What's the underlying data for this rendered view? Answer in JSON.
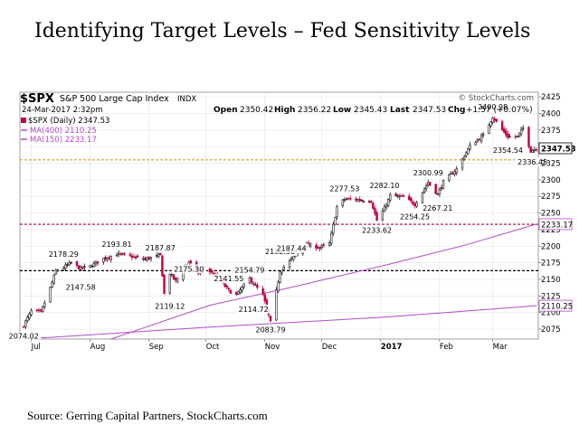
{
  "slide": {
    "title": "Identifying Target Levels – Fed Sensitivity Levels",
    "source": "Source: Gerring Capital Partners, StockCharts.com"
  },
  "chart_data": {
    "type": "candlestick",
    "symbol": "$SPX",
    "name": "S&P 500 Large Cap Index",
    "index_tag": "INDX",
    "brand": "© StockCharts.com",
    "date": "24-Mar-2017 2:32pm",
    "stats": {
      "open_label": "Open",
      "open": "2350.42",
      "high_label": "High",
      "high": "2356.22",
      "low_label": "Low",
      "low": "2345.43",
      "last_label": "Last",
      "last": "2347.53",
      "chg_label": "Chg",
      "chg": "+1.57 (+0.07%)"
    },
    "legend": [
      {
        "label": "$SPX (Daily) 2347.53",
        "color": "#c0003c"
      },
      {
        "label": "MA(400) 2110.25",
        "color": "#b04cc8"
      },
      {
        "label": "MA(150) 2233.17",
        "color": "#b04cc8"
      }
    ],
    "x_ticks": [
      "Jul",
      "Aug",
      "Sep",
      "Oct",
      "Nov",
      "Dec",
      "2017",
      "Feb",
      "Mar"
    ],
    "y_ticks": [
      2075,
      2100,
      2125,
      2150,
      2175,
      2200,
      2225,
      2250,
      2275,
      2300,
      2325,
      2350,
      2375,
      2400,
      2425
    ],
    "ylim": [
      2060,
      2432
    ],
    "last_value_label": "2347.53",
    "ma_labels": [
      "2233.17",
      "2110.25"
    ],
    "horizontal_levels": [
      {
        "value": 2330,
        "color": "#d4a020",
        "style": "dashed"
      },
      {
        "value": 2233,
        "color": "#b0003c",
        "style": "dashed"
      },
      {
        "value": 2163,
        "color": "#000000",
        "style": "dashed"
      }
    ],
    "annotations": [
      {
        "text": "2074.02",
        "value": 2074.02,
        "date": "2016-06-27"
      },
      {
        "text": "2178.29",
        "value": 2178.29,
        "date": "2016-07-18"
      },
      {
        "text": "2147.58",
        "value": 2147.58,
        "date": "2016-07-27"
      },
      {
        "text": "2193.81",
        "value": 2193.81,
        "date": "2016-08-15"
      },
      {
        "text": "2187.87",
        "value": 2187.87,
        "date": "2016-09-07"
      },
      {
        "text": "2119.12",
        "value": 2119.12,
        "date": "2016-09-12"
      },
      {
        "text": "2175.30",
        "value": 2175.3,
        "date": "2016-09-22"
      },
      {
        "text": "2141.55",
        "value": 2141.55,
        "date": "2016-10-13"
      },
      {
        "text": "2154.79",
        "value": 2154.79,
        "date": "2016-10-24"
      },
      {
        "text": "2114.72",
        "value": 2114.72,
        "date": "2016-10-26"
      },
      {
        "text": "2182.30",
        "value": 2182.3,
        "date": "2016-11-09"
      },
      {
        "text": "2083.79",
        "value": 2083.79,
        "date": "2016-11-04"
      },
      {
        "text": "2187.44",
        "value": 2187.44,
        "date": "2016-11-15"
      },
      {
        "text": "2277.53",
        "value": 2277.53,
        "date": "2016-12-13"
      },
      {
        "text": "2282.10",
        "value": 2282.1,
        "date": "2017-01-03"
      },
      {
        "text": "2233.62",
        "value": 2233.62,
        "date": "2016-12-30"
      },
      {
        "text": "2254.25",
        "value": 2254.25,
        "date": "2017-01-19"
      },
      {
        "text": "2300.99",
        "value": 2300.99,
        "date": "2017-01-26"
      },
      {
        "text": "2267.21",
        "value": 2267.21,
        "date": "2017-01-31"
      },
      {
        "text": "2400.98",
        "value": 2400.98,
        "date": "2017-03-01"
      },
      {
        "text": "2354.54",
        "value": 2354.54,
        "date": "2017-03-09"
      },
      {
        "text": "2336.45",
        "value": 2336.45,
        "date": "2017-03-22"
      }
    ],
    "close_waypoints": [
      [
        "2016-06-27",
        2081
      ],
      [
        "2016-07-01",
        2102
      ],
      [
        "2016-07-06",
        2100
      ],
      [
        "2016-07-11",
        2137
      ],
      [
        "2016-07-14",
        2163
      ],
      [
        "2016-07-18",
        2168
      ],
      [
        "2016-07-22",
        2175
      ],
      [
        "2016-07-27",
        2166
      ],
      [
        "2016-08-01",
        2170
      ],
      [
        "2016-08-08",
        2181
      ],
      [
        "2016-08-15",
        2188
      ],
      [
        "2016-08-22",
        2185
      ],
      [
        "2016-08-29",
        2180
      ],
      [
        "2016-09-07",
        2186
      ],
      [
        "2016-09-09",
        2128
      ],
      [
        "2016-09-12",
        2159
      ],
      [
        "2016-09-15",
        2147
      ],
      [
        "2016-09-22",
        2177
      ],
      [
        "2016-09-27",
        2159
      ],
      [
        "2016-09-30",
        2168
      ],
      [
        "2016-10-07",
        2153
      ],
      [
        "2016-10-13",
        2133
      ],
      [
        "2016-10-17",
        2126
      ],
      [
        "2016-10-21",
        2141
      ],
      [
        "2016-10-24",
        2151
      ],
      [
        "2016-10-31",
        2126
      ],
      [
        "2016-11-04",
        2085
      ],
      [
        "2016-11-07",
        2132
      ],
      [
        "2016-11-09",
        2163
      ],
      [
        "2016-11-15",
        2180
      ],
      [
        "2016-11-22",
        2202
      ],
      [
        "2016-11-30",
        2198
      ],
      [
        "2016-12-05",
        2204
      ],
      [
        "2016-12-09",
        2259
      ],
      [
        "2016-12-13",
        2271
      ],
      [
        "2016-12-20",
        2270
      ],
      [
        "2016-12-27",
        2268
      ],
      [
        "2016-12-30",
        2239
      ],
      [
        "2017-01-03",
        2257
      ],
      [
        "2017-01-06",
        2276
      ],
      [
        "2017-01-13",
        2274
      ],
      [
        "2017-01-19",
        2263
      ],
      [
        "2017-01-26",
        2296
      ],
      [
        "2017-01-31",
        2278
      ],
      [
        "2017-02-03",
        2297
      ],
      [
        "2017-02-10",
        2316
      ],
      [
        "2017-02-17",
        2351
      ],
      [
        "2017-02-24",
        2367
      ],
      [
        "2017-03-01",
        2395
      ],
      [
        "2017-03-06",
        2375
      ],
      [
        "2017-03-09",
        2365
      ],
      [
        "2017-03-14",
        2365
      ],
      [
        "2017-03-17",
        2378
      ],
      [
        "2017-03-21",
        2344
      ],
      [
        "2017-03-24",
        2347.53
      ]
    ],
    "ma400": [
      [
        "2016-06-27",
        2060
      ],
      [
        "2016-10-03",
        2078
      ],
      [
        "2017-01-03",
        2093
      ],
      [
        "2017-03-24",
        2110.25
      ]
    ],
    "ma150": [
      [
        "2016-08-12",
        2060
      ],
      [
        "2016-10-03",
        2111
      ],
      [
        "2016-11-15",
        2138
      ],
      [
        "2017-01-03",
        2171
      ],
      [
        "2017-02-15",
        2202
      ],
      [
        "2017-03-24",
        2233.17
      ]
    ]
  }
}
